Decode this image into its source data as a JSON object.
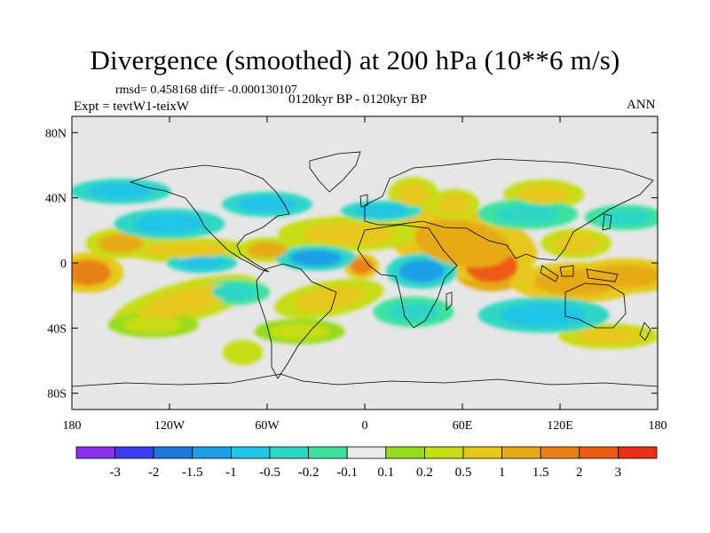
{
  "title": "Divergence (smoothed) at 200 hPa (10**6 m/s)",
  "stats_text": "rmsd= 0.458168  diff= -0.000130107",
  "case_label": "Expt = tevtW1-teixW",
  "period_label": "0120kyr BP - 0120kyr BP",
  "season_label": "ANN",
  "map": {
    "projection": "cylindrical-equidistant",
    "lat_ticks": [
      {
        "label": "80N",
        "lat": 80
      },
      {
        "label": "40N",
        "lat": 40
      },
      {
        "label": "0",
        "lat": 0
      },
      {
        "label": "40S",
        "lat": -40
      },
      {
        "label": "80S",
        "lat": -80
      }
    ],
    "lon_ticks": [
      {
        "label": "180",
        "lon": -180
      },
      {
        "label": "120W",
        "lon": -120
      },
      {
        "label": "60W",
        "lon": -60
      },
      {
        "label": "0",
        "lon": 0
      },
      {
        "label": "60E",
        "lon": 60
      },
      {
        "label": "120E",
        "lon": 120
      },
      {
        "label": "180",
        "lon": 180
      }
    ],
    "background_color": "#e6e6e6"
  },
  "colorbar": {
    "colors": [
      "#8c30f0",
      "#3c3cf0",
      "#1f78dc",
      "#1ea0e6",
      "#22c4e6",
      "#2ed6c6",
      "#3ee29c",
      "#ebebeb",
      "#96dc1e",
      "#c8dc14",
      "#e6c81a",
      "#e6aa14",
      "#e88214",
      "#ee5a14",
      "#e83014"
    ],
    "labels": [
      "-3",
      "-2",
      "-1.5",
      "-1",
      "-0.5",
      "-0.2",
      "-0.1",
      "0.1",
      "0.2",
      "0.5",
      "1",
      "1.5",
      "2",
      "3"
    ]
  },
  "field_features": [
    {
      "lon": 78,
      "lat": -2,
      "rx": 16,
      "ry": 10,
      "value": 3,
      "rot": 0
    },
    {
      "lon": 60,
      "lat": 12,
      "rx": 30,
      "ry": 14,
      "value": 1.2,
      "rot": 10
    },
    {
      "lon": 130,
      "lat": -12,
      "rx": 26,
      "ry": 8,
      "value": 1.3,
      "rot": 0
    },
    {
      "lon": 160,
      "lat": -8,
      "rx": 22,
      "ry": 7,
      "value": 1.3,
      "rot": 0
    },
    {
      "lon": -2,
      "lat": -2,
      "rx": 7,
      "ry": 5,
      "value": 1.8,
      "rot": 0
    },
    {
      "lon": -170,
      "lat": -6,
      "rx": 14,
      "ry": 8,
      "value": 1.6,
      "rot": 0
    },
    {
      "lon": -150,
      "lat": 12,
      "rx": 14,
      "ry": 6,
      "value": 1.1,
      "rot": 0
    },
    {
      "lon": -110,
      "lat": 8,
      "rx": 26,
      "ry": 5,
      "value": 0.9,
      "rot": 0
    },
    {
      "lon": -60,
      "lat": 8,
      "rx": 12,
      "ry": 5,
      "value": 1.1,
      "rot": 0
    },
    {
      "lon": -10,
      "lat": 18,
      "rx": 28,
      "ry": 7,
      "value": 0.8,
      "rot": 0
    },
    {
      "lon": -22,
      "lat": -22,
      "rx": 22,
      "ry": 7,
      "value": 0.8,
      "rot": -10
    },
    {
      "lon": -110,
      "lat": -24,
      "rx": 30,
      "ry": 8,
      "value": 0.6,
      "rot": -15
    },
    {
      "lon": 30,
      "lat": 42,
      "rx": 10,
      "ry": 7,
      "value": 0.9,
      "rot": 0
    },
    {
      "lon": 55,
      "lat": 36,
      "rx": 10,
      "ry": 6,
      "value": 0.7,
      "rot": 0
    },
    {
      "lon": 110,
      "lat": 42,
      "rx": 16,
      "ry": 6,
      "value": 0.6,
      "rot": 0
    },
    {
      "lon": 130,
      "lat": 12,
      "rx": 14,
      "ry": 6,
      "value": 0.8,
      "rot": 0
    },
    {
      "lon": -75,
      "lat": -55,
      "rx": 8,
      "ry": 5,
      "value": 0.5,
      "rot": 0
    },
    {
      "lon": -130,
      "lat": -38,
      "rx": 18,
      "ry": 5,
      "value": 0.4,
      "rot": 0
    },
    {
      "lon": 150,
      "lat": -45,
      "rx": 20,
      "ry": 5,
      "value": 0.6,
      "rot": 0
    },
    {
      "lon": -40,
      "lat": -42,
      "rx": 18,
      "ry": 5,
      "value": 0.4,
      "rot": 0
    },
    {
      "lon": -30,
      "lat": 3,
      "rx": 16,
      "ry": 5,
      "value": -1.1,
      "rot": 0
    },
    {
      "lon": 35,
      "lat": -5,
      "rx": 14,
      "ry": 7,
      "value": -1.0,
      "rot": 0
    },
    {
      "lon": -100,
      "lat": 0,
      "rx": 14,
      "ry": 4,
      "value": -0.6,
      "rot": 0
    },
    {
      "lon": -120,
      "lat": 24,
      "rx": 22,
      "ry": 6,
      "value": -0.5,
      "rot": 0
    },
    {
      "lon": -150,
      "lat": 44,
      "rx": 20,
      "ry": 5,
      "value": -0.5,
      "rot": 0
    },
    {
      "lon": -60,
      "lat": 36,
      "rx": 18,
      "ry": 5,
      "value": -0.5,
      "rot": 0
    },
    {
      "lon": 10,
      "lat": 32,
      "rx": 16,
      "ry": 4,
      "value": -0.5,
      "rot": 0
    },
    {
      "lon": 100,
      "lat": 30,
      "rx": 20,
      "ry": 6,
      "value": -0.4,
      "rot": 0
    },
    {
      "lon": 110,
      "lat": -32,
      "rx": 26,
      "ry": 7,
      "value": -0.5,
      "rot": 0
    },
    {
      "lon": 30,
      "lat": -30,
      "rx": 16,
      "ry": 6,
      "value": -0.4,
      "rot": 0
    },
    {
      "lon": -80,
      "lat": -18,
      "rx": 14,
      "ry": 5,
      "value": -0.3,
      "rot": 0
    },
    {
      "lon": 160,
      "lat": 28,
      "rx": 16,
      "ry": 5,
      "value": -0.3,
      "rot": 0
    }
  ]
}
